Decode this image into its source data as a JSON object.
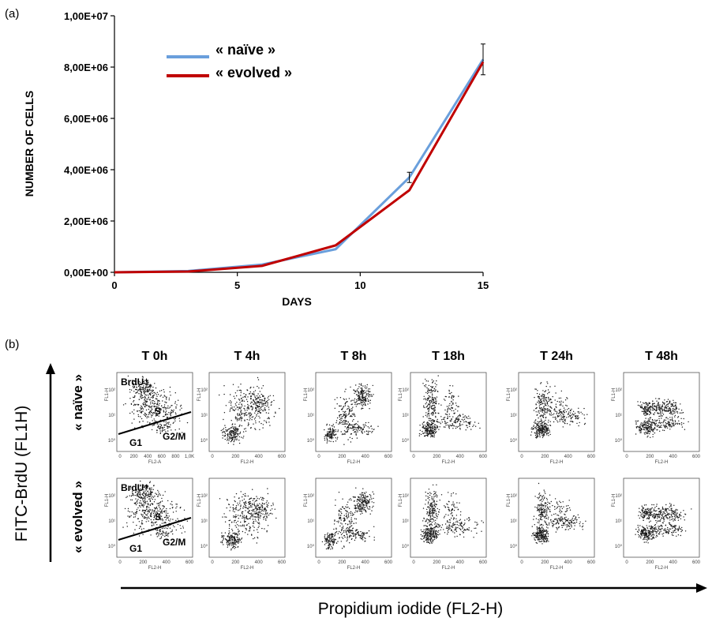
{
  "panel_labels": {
    "a": "(a)",
    "b": "(b)"
  },
  "colors": {
    "naive": "#6a9fdc",
    "evolved": "#c00000",
    "dots": "#1a1a1a"
  },
  "chart_data": [
    {
      "type": "line",
      "xlabel": "DAYS",
      "ylabel": "NUMBER OF CELLS",
      "xlim": [
        0,
        15
      ],
      "ylim": [
        0,
        10000000
      ],
      "x_ticks": [
        0,
        5,
        10,
        15
      ],
      "x_tick_labels": [
        "0",
        "5",
        "10",
        "15"
      ],
      "y_ticks": [
        0,
        2000000,
        4000000,
        6000000,
        8000000,
        10000000
      ],
      "y_tick_labels": [
        "0,00E+00",
        "2,00E+06",
        "4,00E+06",
        "6,00E+06",
        "8,00E+06",
        "1,00E+07"
      ],
      "legend_position": "top-left",
      "series": [
        {
          "name": "« naïve »",
          "color": "#6a9fdc",
          "x": [
            0,
            3,
            6,
            9,
            12,
            15
          ],
          "y": [
            0,
            50000,
            300000,
            900000,
            3700000,
            8300000
          ],
          "error": [
            0,
            0,
            0,
            0,
            200000,
            600000
          ]
        },
        {
          "name": "« evolved »",
          "color": "#c00000",
          "x": [
            0,
            3,
            6,
            9,
            12,
            15
          ],
          "y": [
            0,
            30000,
            250000,
            1050000,
            3200000,
            8200000
          ],
          "error": [
            0,
            0,
            0,
            0,
            0,
            0
          ]
        }
      ]
    },
    {
      "type": "scatter",
      "subtype": "flow-cytometry-grid",
      "timepoints": [
        "T 0h",
        "T 4h",
        "T 8h",
        "T 18h",
        "T 24h",
        "T 48h"
      ],
      "rows": [
        "« naïve »",
        "« evolved »"
      ],
      "x_axis_label": "Propidium iodide (FL2-H)",
      "y_axis_label": "FITC-BrdU (FL1H)",
      "mini_y_label": "FL1-H",
      "mini_x_label_first": "FL2-A",
      "mini_x_label": "FL2-H",
      "mini_x_ticks_first_naive": [
        "0",
        "200",
        "400",
        "600",
        "800",
        "1,0K"
      ],
      "mini_x_ticks": [
        "0",
        "200",
        "400",
        "600"
      ],
      "mini_y_ticks": [
        "10⁰",
        "10¹",
        "10²"
      ],
      "gate_labels": {
        "brdu": "BrdU⁺",
        "s": "S",
        "g1": "G1",
        "g2m": "G2/M"
      }
    }
  ]
}
